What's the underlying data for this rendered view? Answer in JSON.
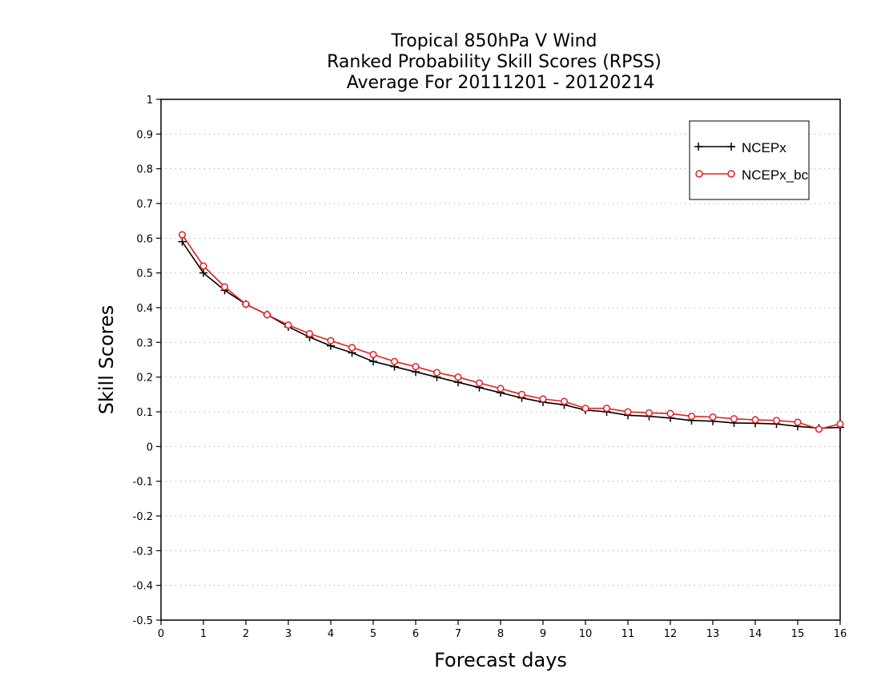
{
  "chart_data": {
    "type": "line",
    "title_lines": [
      "Tropical 850hPa V Wind",
      "Ranked Probability Skill Scores (RPSS)",
      "Average For 20111201 - 20120214"
    ],
    "xlabel": "Forecast days",
    "ylabel": "Skill Scores",
    "xlim": [
      0,
      16
    ],
    "ylim": [
      -0.5,
      1
    ],
    "x_ticks": [
      0,
      1,
      2,
      3,
      4,
      5,
      6,
      7,
      8,
      9,
      10,
      11,
      12,
      13,
      14,
      15,
      16
    ],
    "y_ticks": [
      -0.5,
      -0.4,
      -0.3,
      -0.2,
      -0.1,
      0,
      0.1,
      0.2,
      0.3,
      0.4,
      0.5,
      0.6,
      0.7,
      0.8,
      0.9,
      1
    ],
    "y_tick_labels": [
      "-0.5",
      "-0.4",
      "-0.3",
      "-0.2",
      "-0.1",
      "0",
      "0.1",
      "0.2",
      "0.3",
      "0.4",
      "0.5",
      "0.6",
      "0.7",
      "0.8",
      "0.9",
      "1"
    ],
    "grid": "horizontal dotted",
    "legend_position": "top-right",
    "x": [
      0.5,
      1,
      1.5,
      2,
      2.5,
      3,
      3.5,
      4,
      4.5,
      5,
      5.5,
      6,
      6.5,
      7,
      7.5,
      8,
      8.5,
      9,
      9.5,
      10,
      10.5,
      11,
      11.5,
      12,
      12.5,
      13,
      13.5,
      14,
      14.5,
      15,
      15.5,
      16
    ],
    "series": [
      {
        "name": "NCEPx",
        "color": "#000000",
        "marker": "plus",
        "values": [
          0.59,
          0.5,
          0.45,
          0.41,
          0.38,
          0.345,
          0.315,
          0.29,
          0.27,
          0.245,
          0.23,
          0.215,
          0.2,
          0.185,
          0.17,
          0.155,
          0.14,
          0.128,
          0.12,
          0.105,
          0.1,
          0.09,
          0.087,
          0.082,
          0.075,
          0.073,
          0.068,
          0.067,
          0.065,
          0.058,
          0.053,
          0.055
        ]
      },
      {
        "name": "NCEPx_bc",
        "color": "#e02020",
        "marker": "circle",
        "values": [
          0.61,
          0.52,
          0.46,
          0.41,
          0.38,
          0.35,
          0.325,
          0.305,
          0.285,
          0.265,
          0.245,
          0.23,
          0.213,
          0.2,
          0.183,
          0.167,
          0.15,
          0.137,
          0.13,
          0.11,
          0.11,
          0.1,
          0.097,
          0.095,
          0.087,
          0.085,
          0.08,
          0.077,
          0.075,
          0.07,
          0.05,
          0.065
        ]
      }
    ]
  }
}
